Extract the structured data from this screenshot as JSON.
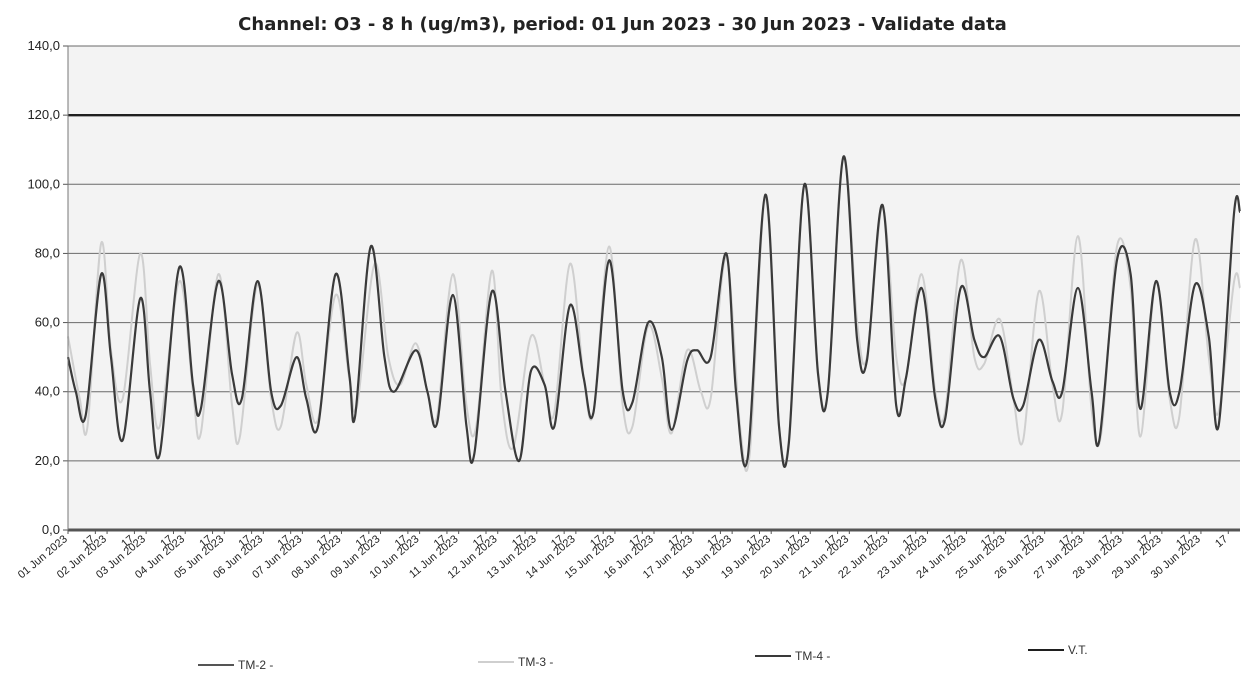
{
  "chart_data": {
    "type": "line",
    "title": "Channel: O3 - 8 h (ug/m3), period: 01 Jun 2023 - 30 Jun 2023 - Validate data",
    "xlabel": "",
    "ylabel": "",
    "ylim": [
      0,
      140
    ],
    "yticks": [
      "0,0",
      "20,0",
      "40,0",
      "60,0",
      "80,0",
      "100,0",
      "120,0",
      "140,0"
    ],
    "grid": true,
    "legend_position": "bottom",
    "x_tick_labels": [
      "01 Jun 2023",
      "17",
      "02 Jun 2023",
      "17",
      "03 Jun 2023",
      "17",
      "04 Jun 2023",
      "17",
      "05 Jun 2023",
      "17",
      "06 Jun 2023",
      "17",
      "07 Jun 2023",
      "17",
      "08 Jun 2023",
      "17",
      "09 Jun 2023",
      "17",
      "10 Jun 2023",
      "17",
      "11 Jun 2023",
      "17",
      "12 Jun 2023",
      "17",
      "13 Jun 2023",
      "17",
      "14 Jun 2023",
      "17",
      "15 Jun 2023",
      "17",
      "16 Jun 2023",
      "17",
      "17 Jun 2023",
      "17",
      "18 Jun 2023",
      "17",
      "19 Jun 2023",
      "17",
      "20 Jun 2023",
      "17",
      "21 Jun 2023",
      "17",
      "22 Jun 2023",
      "17",
      "23 Jun 2023",
      "17",
      "24 Jun 2023",
      "17",
      "25 Jun 2023",
      "17",
      "26 Jun 2023",
      "17",
      "27 Jun 2023",
      "17",
      "28 Jun 2023",
      "17",
      "29 Jun 2023",
      "17",
      "30 Jun 2023",
      "17"
    ],
    "x_days": [
      1,
      1.7,
      2,
      2.7,
      3,
      3.7,
      4,
      4.7,
      5,
      5.7,
      6,
      6.7,
      7,
      7.7,
      8,
      8.7,
      9,
      9.7,
      10,
      10.7,
      11,
      11.7,
      12,
      12.7,
      13,
      13.7,
      14,
      14.7,
      15,
      15.7,
      16,
      16.7,
      17,
      17.7,
      18,
      18.7,
      19,
      19.7,
      20,
      20.7,
      21,
      21.7,
      22,
      22.7,
      23,
      23.7,
      24,
      24.7,
      25,
      25.7,
      26,
      26.7,
      27,
      27.7,
      28,
      28.7,
      29,
      29.7,
      30,
      30.7
    ],
    "x_range": [
      1,
      31
    ],
    "series": [
      {
        "name": "TM-2 -",
        "color": "#555555",
        "points": [
          [
            1,
            0
          ],
          [
            31,
            0
          ]
        ]
      },
      {
        "name": "TM-3 -",
        "color": "#cfcfcf",
        "points": [
          [
            1.0,
            56
          ],
          [
            1.3,
            38
          ],
          [
            1.5,
            30
          ],
          [
            1.85,
            83
          ],
          [
            2.1,
            52
          ],
          [
            2.4,
            38
          ],
          [
            2.85,
            80
          ],
          [
            3.1,
            48
          ],
          [
            3.35,
            30
          ],
          [
            3.85,
            72
          ],
          [
            4.2,
            40
          ],
          [
            4.4,
            28
          ],
          [
            4.85,
            74
          ],
          [
            5.2,
            36
          ],
          [
            5.4,
            27
          ],
          [
            5.85,
            71
          ],
          [
            6.2,
            38
          ],
          [
            6.45,
            30
          ],
          [
            6.85,
            57
          ],
          [
            7.1,
            42
          ],
          [
            7.4,
            32
          ],
          [
            7.85,
            68
          ],
          [
            8.2,
            44
          ],
          [
            8.4,
            36
          ],
          [
            8.85,
            77
          ],
          [
            9.2,
            50
          ],
          [
            9.5,
            42
          ],
          [
            9.9,
            54
          ],
          [
            10.2,
            40
          ],
          [
            10.45,
            33
          ],
          [
            10.85,
            74
          ],
          [
            11.2,
            36
          ],
          [
            11.45,
            30
          ],
          [
            11.85,
            75
          ],
          [
            12.1,
            38
          ],
          [
            12.4,
            24
          ],
          [
            12.85,
            56
          ],
          [
            13.2,
            42
          ],
          [
            13.45,
            34
          ],
          [
            13.85,
            77
          ],
          [
            14.2,
            44
          ],
          [
            14.45,
            34
          ],
          [
            14.85,
            82
          ],
          [
            15.2,
            36
          ],
          [
            15.45,
            30
          ],
          [
            15.85,
            59
          ],
          [
            16.2,
            44
          ],
          [
            16.45,
            28
          ],
          [
            16.85,
            52
          ],
          [
            17.2,
            40
          ],
          [
            17.45,
            38
          ],
          [
            17.85,
            79
          ],
          [
            18.2,
            30
          ],
          [
            18.45,
            22
          ],
          [
            18.85,
            96
          ],
          [
            19.2,
            30
          ],
          [
            19.45,
            26
          ],
          [
            19.85,
            100
          ],
          [
            20.2,
            46
          ],
          [
            20.45,
            40
          ],
          [
            20.85,
            108
          ],
          [
            21.2,
            60
          ],
          [
            21.45,
            50
          ],
          [
            21.85,
            93
          ],
          [
            22.2,
            50
          ],
          [
            22.45,
            44
          ],
          [
            22.85,
            74
          ],
          [
            23.2,
            40
          ],
          [
            23.45,
            34
          ],
          [
            23.85,
            78
          ],
          [
            24.2,
            50
          ],
          [
            24.45,
            48
          ],
          [
            24.85,
            61
          ],
          [
            25.2,
            38
          ],
          [
            25.45,
            26
          ],
          [
            25.85,
            69
          ],
          [
            26.2,
            42
          ],
          [
            26.45,
            34
          ],
          [
            26.85,
            85
          ],
          [
            27.2,
            35
          ],
          [
            27.45,
            28
          ],
          [
            27.85,
            82
          ],
          [
            28.2,
            70
          ],
          [
            28.45,
            27
          ],
          [
            28.85,
            72
          ],
          [
            29.2,
            38
          ],
          [
            29.45,
            33
          ],
          [
            29.85,
            84
          ],
          [
            30.2,
            50
          ],
          [
            30.45,
            34
          ],
          [
            30.85,
            72
          ],
          [
            31.0,
            70
          ]
        ]
      },
      {
        "name": "TM-4 -",
        "color": "#3a3a3a",
        "points": [
          [
            1.0,
            50
          ],
          [
            1.2,
            40
          ],
          [
            1.45,
            33
          ],
          [
            1.85,
            74
          ],
          [
            2.1,
            50
          ],
          [
            2.4,
            26
          ],
          [
            2.85,
            67
          ],
          [
            3.1,
            40
          ],
          [
            3.35,
            22
          ],
          [
            3.85,
            76
          ],
          [
            4.2,
            42
          ],
          [
            4.4,
            35
          ],
          [
            4.85,
            72
          ],
          [
            5.2,
            45
          ],
          [
            5.45,
            38
          ],
          [
            5.85,
            72
          ],
          [
            6.2,
            40
          ],
          [
            6.45,
            36
          ],
          [
            6.85,
            50
          ],
          [
            7.1,
            38
          ],
          [
            7.4,
            30
          ],
          [
            7.85,
            74
          ],
          [
            8.2,
            45
          ],
          [
            8.35,
            33
          ],
          [
            8.75,
            82
          ],
          [
            9.1,
            50
          ],
          [
            9.35,
            40
          ],
          [
            9.9,
            52
          ],
          [
            10.2,
            40
          ],
          [
            10.45,
            31
          ],
          [
            10.85,
            68
          ],
          [
            11.2,
            30
          ],
          [
            11.4,
            22
          ],
          [
            11.85,
            69
          ],
          [
            12.2,
            40
          ],
          [
            12.55,
            20
          ],
          [
            12.85,
            46
          ],
          [
            13.2,
            42
          ],
          [
            13.45,
            30
          ],
          [
            13.85,
            65
          ],
          [
            14.2,
            44
          ],
          [
            14.45,
            34
          ],
          [
            14.85,
            78
          ],
          [
            15.2,
            40
          ],
          [
            15.45,
            37
          ],
          [
            15.85,
            60
          ],
          [
            16.2,
            50
          ],
          [
            16.45,
            29
          ],
          [
            16.85,
            49
          ],
          [
            17.1,
            52
          ],
          [
            17.45,
            50
          ],
          [
            17.85,
            80
          ],
          [
            18.1,
            40
          ],
          [
            18.4,
            21
          ],
          [
            18.85,
            97
          ],
          [
            19.2,
            30
          ],
          [
            19.45,
            25
          ],
          [
            19.85,
            100
          ],
          [
            20.2,
            45
          ],
          [
            20.45,
            40
          ],
          [
            20.85,
            108
          ],
          [
            21.2,
            55
          ],
          [
            21.45,
            49
          ],
          [
            21.85,
            94
          ],
          [
            22.2,
            36
          ],
          [
            22.45,
            44
          ],
          [
            22.85,
            70
          ],
          [
            23.2,
            38
          ],
          [
            23.45,
            32
          ],
          [
            23.85,
            70
          ],
          [
            24.2,
            55
          ],
          [
            24.45,
            50
          ],
          [
            24.85,
            56
          ],
          [
            25.2,
            38
          ],
          [
            25.45,
            36
          ],
          [
            25.85,
            55
          ],
          [
            26.2,
            43
          ],
          [
            26.45,
            40
          ],
          [
            26.85,
            70
          ],
          [
            27.2,
            40
          ],
          [
            27.4,
            26
          ],
          [
            27.85,
            78
          ],
          [
            28.2,
            74
          ],
          [
            28.45,
            35
          ],
          [
            28.85,
            72
          ],
          [
            29.2,
            40
          ],
          [
            29.45,
            40
          ],
          [
            29.85,
            71
          ],
          [
            30.2,
            56
          ],
          [
            30.45,
            30
          ],
          [
            30.85,
            92
          ],
          [
            31.0,
            92
          ]
        ]
      },
      {
        "name": "V.T.",
        "color": "#1f1f1f",
        "points": [
          [
            1,
            120
          ],
          [
            31,
            120
          ]
        ]
      }
    ]
  }
}
